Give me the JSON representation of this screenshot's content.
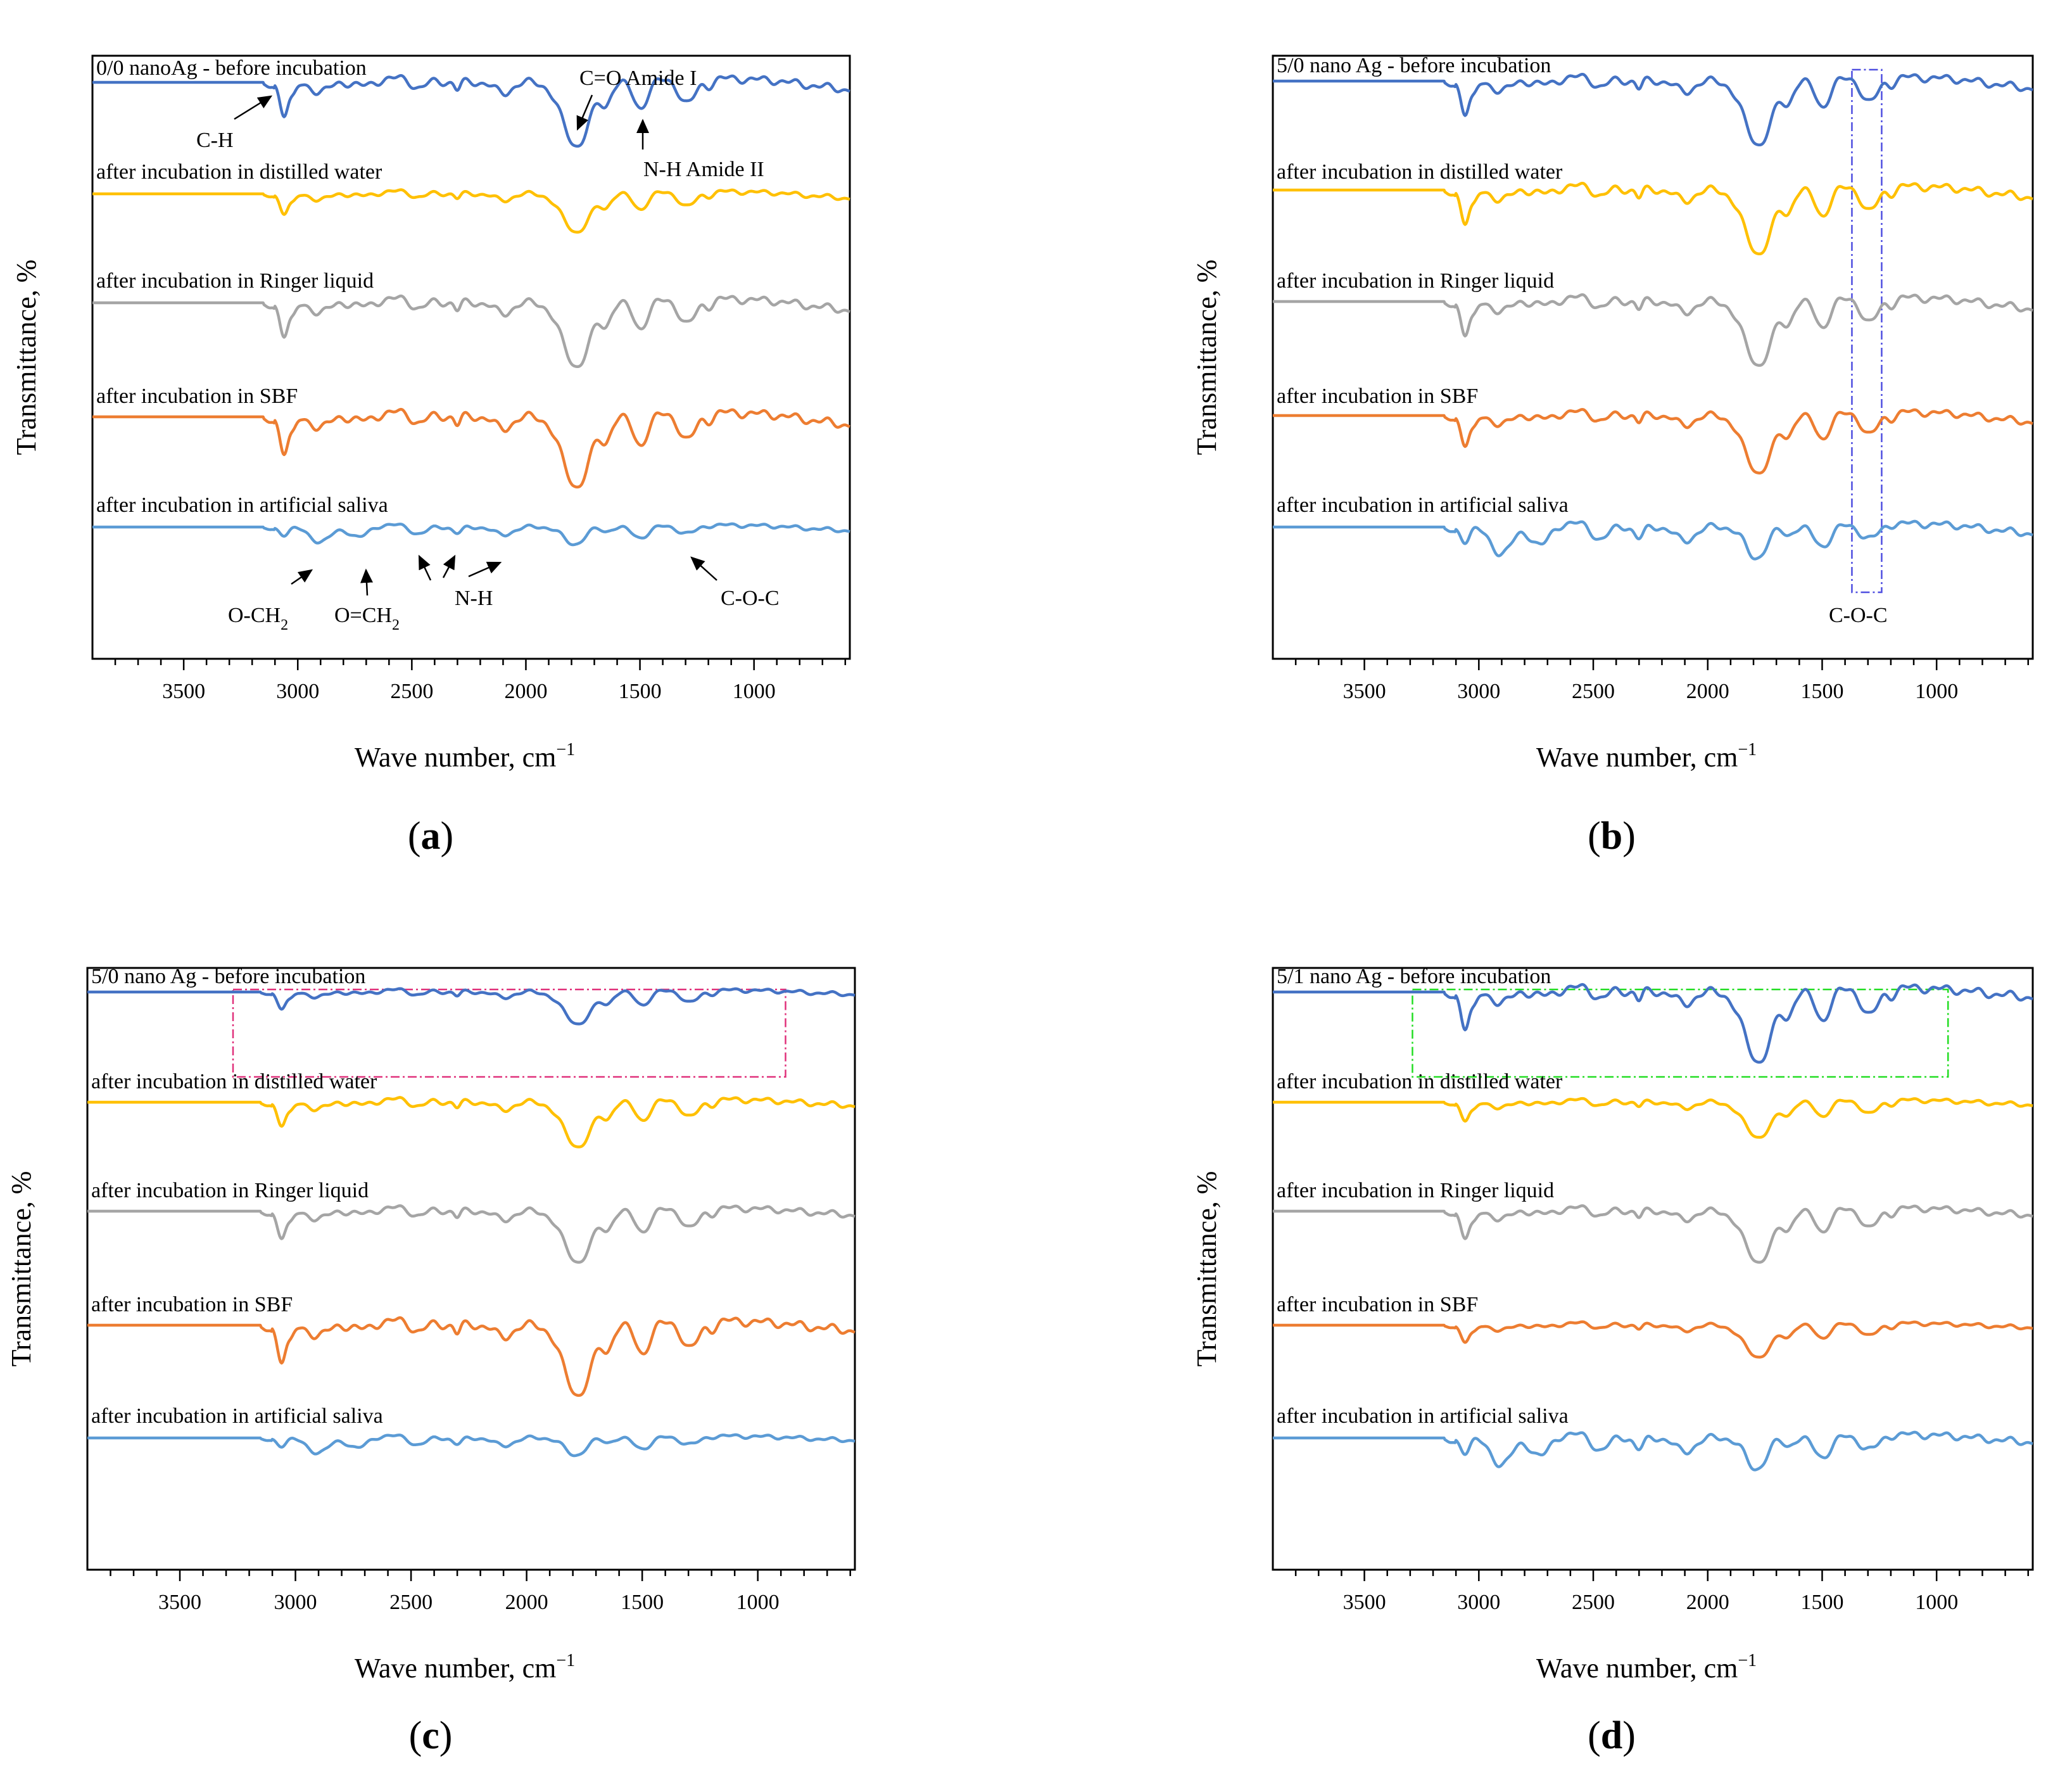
{
  "chart_data": [
    {
      "panel": "a",
      "type": "line",
      "panel_label": "a",
      "xlabel": "Wave number, cm",
      "xlabel_sup": "−1",
      "ylabel": "Transmittance, %",
      "xlim": [
        3900,
        580
      ],
      "xticks": [
        3500,
        3000,
        2500,
        2000,
        1500,
        1000
      ],
      "series": [
        {
          "name": "0/0 nanoAg - before incubation",
          "color": "#4472c4"
        },
        {
          "name": "after incubation in distilled water",
          "color": "#ffc000"
        },
        {
          "name": "after incubation in Ringer liquid",
          "color": "#a5a5a5"
        },
        {
          "name": "after incubation in SBF",
          "color": "#ed7d31"
        },
        {
          "name": "after incubation in artificial saliva",
          "color": "#5b9bd5"
        }
      ],
      "annotations": [
        {
          "text": "C-H",
          "target_wavenumber": 3080
        },
        {
          "text": "C=O Amide I",
          "target_wavenumber": 1780
        },
        {
          "text": "N-H Amide II",
          "target_wavenumber": 1500
        },
        {
          "text": "O-CH",
          "sub": "2",
          "target_wavenumber": 2900
        },
        {
          "text": "O=CH",
          "sub": "2",
          "target_wavenumber": 2700
        },
        {
          "text": "N-H",
          "target_wavenumber": 2300
        },
        {
          "text": "C-O-C",
          "target_wavenumber": 1280
        }
      ]
    },
    {
      "panel": "b",
      "type": "line",
      "panel_label": "b",
      "xlabel": "Wave number, cm",
      "xlabel_sup": "−1",
      "ylabel": "Transmittance, %",
      "xlim": [
        3900,
        580
      ],
      "xticks": [
        3500,
        3000,
        2500,
        2000,
        1500,
        1000
      ],
      "series": [
        {
          "name": "5/0 nano Ag - before incubation",
          "color": "#4472c4"
        },
        {
          "name": "after incubation in distilled water",
          "color": "#ffc000"
        },
        {
          "name": "after incubation in Ringer liquid",
          "color": "#a5a5a5"
        },
        {
          "name": "after incubation in SBF",
          "color": "#ed7d31"
        },
        {
          "name": "after incubation in artificial saliva",
          "color": "#5b9bd5"
        }
      ],
      "highlight_box": {
        "from": 1370,
        "to": 1240,
        "color": "#4f4fe0"
      },
      "annotations": [
        {
          "text": "C-O-C",
          "target_wavenumber": 1300
        }
      ]
    },
    {
      "panel": "c",
      "type": "line",
      "panel_label": "c",
      "xlabel": "Wave number, cm",
      "xlabel_sup": "−1",
      "ylabel": "Transmittance, %",
      "xlim": [
        3900,
        580
      ],
      "xticks": [
        3500,
        3000,
        2500,
        2000,
        1500,
        1000
      ],
      "series": [
        {
          "name": "5/0 nano Ag - before incubation",
          "color": "#4472c4"
        },
        {
          "name": "after incubation in distilled water",
          "color": "#ffc000"
        },
        {
          "name": "after incubation in Ringer liquid",
          "color": "#a5a5a5"
        },
        {
          "name": "after incubation in SBF",
          "color": "#ed7d31"
        },
        {
          "name": "after incubation in artificial saliva",
          "color": "#5b9bd5"
        }
      ],
      "highlight_box": {
        "from": 3270,
        "to": 880,
        "color": "#e0307a"
      },
      "annotations": []
    },
    {
      "panel": "d",
      "type": "line",
      "panel_label": "d",
      "xlabel": "Wave number, cm",
      "xlabel_sup": "−1",
      "ylabel": "Transmittance, %",
      "xlim": [
        3900,
        580
      ],
      "xticks": [
        3500,
        3000,
        2500,
        2000,
        1500,
        1000
      ],
      "series": [
        {
          "name": "5/1 nano Ag - before incubation",
          "color": "#4472c4"
        },
        {
          "name": "after incubation in distilled water",
          "color": "#ffc000"
        },
        {
          "name": "after incubation in Ringer liquid",
          "color": "#a5a5a5"
        },
        {
          "name": "after incubation in SBF",
          "color": "#ed7d31"
        },
        {
          "name": "after incubation in artificial saliva",
          "color": "#5b9bd5"
        }
      ],
      "highlight_box": {
        "from": 3290,
        "to": 950,
        "color": "#22dd22"
      },
      "annotations": []
    }
  ]
}
